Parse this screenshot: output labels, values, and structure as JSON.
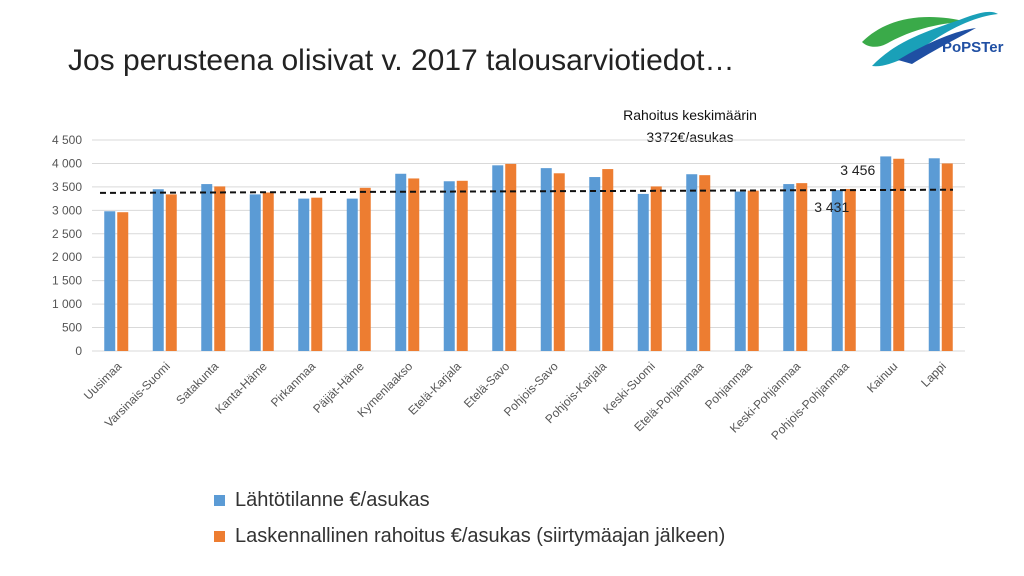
{
  "slide": {
    "title": "Jos perusteena olisivat v. 2017 talousarviotiedot…",
    "logo_text": "PoPSTer"
  },
  "colors": {
    "series1": "#5b9bd5",
    "series2": "#ed7d31",
    "average_line": "#111111",
    "logo_green": "#3aaa49",
    "logo_blue": "#1f4fa3"
  },
  "chart_data": {
    "type": "bar",
    "categories": [
      "Uusimaa",
      "Varsinais-Suomi",
      "Satakunta",
      "Kanta-Häme",
      "Pirkanmaa",
      "Päijät-Häme",
      "Kymenlaakso",
      "Etelä-Karjala",
      "Etelä-Savo",
      "Pohjois-Savo",
      "Pohjois-Karjala",
      "Keski-Suomi",
      "Etelä-Pohjanmaa",
      "Pohjanmaa",
      "Keski-Pohjanmaa",
      "Pohjois-Pohjanmaa",
      "Kainuu",
      "Lappi"
    ],
    "series": [
      {
        "name": "Lähtötilanne €/asukas",
        "values": [
          2980,
          3450,
          3560,
          3340,
          3250,
          3250,
          3780,
          3620,
          3960,
          3900,
          3710,
          3350,
          3770,
          3400,
          3560,
          3431,
          4150,
          4110
        ]
      },
      {
        "name": "Laskennallinen rahoitus €/asukas (siirtymäajan jälkeen)",
        "values": [
          2960,
          3340,
          3510,
          3380,
          3270,
          3480,
          3680,
          3630,
          3990,
          3790,
          3880,
          3510,
          3750,
          3420,
          3580,
          3456,
          4100,
          4000
        ]
      }
    ],
    "yticks": [
      "0",
      "500",
      "1 000",
      "1 500",
      "2 000",
      "2 500",
      "3 000",
      "3 500",
      "4 000",
      "4 500"
    ],
    "ylim": [
      0,
      4500
    ],
    "grid": true,
    "legend_position": "bottom",
    "average_line": {
      "label_line1": "Rahoitus keskimäärin",
      "label_line2": "3372€/asukas",
      "start": 3372,
      "end": 3440
    },
    "annotations": [
      {
        "text": "3 456",
        "category_index": 15,
        "series_index": 1
      },
      {
        "text": "3 431",
        "category_index": 15,
        "series_index": 0
      }
    ]
  }
}
